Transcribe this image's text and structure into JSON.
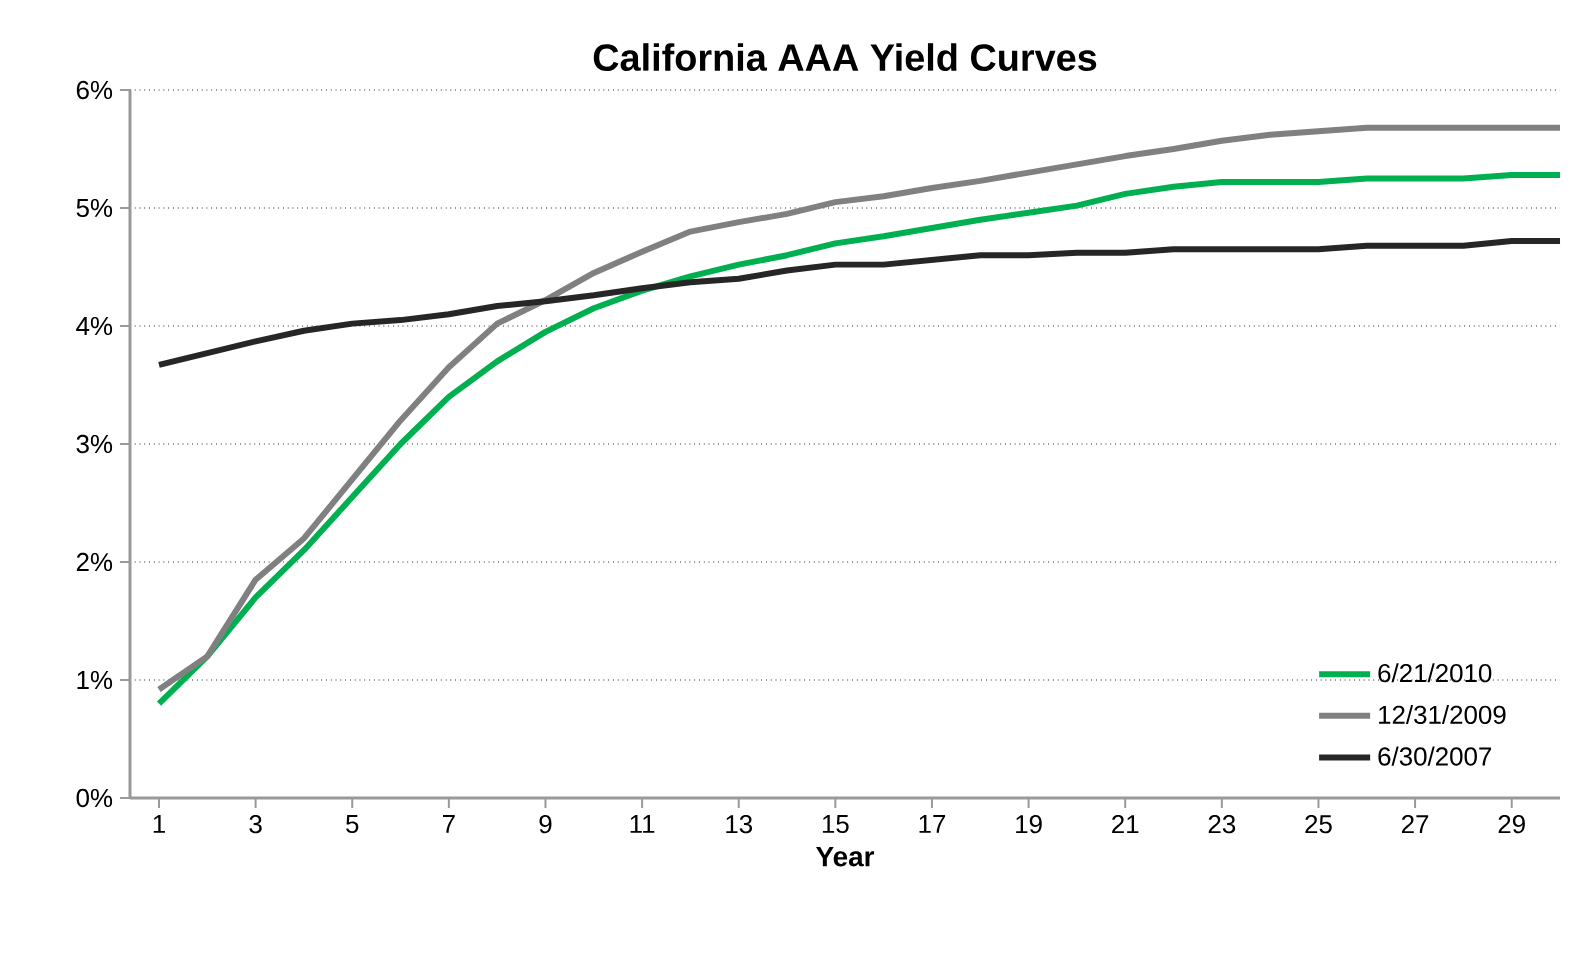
{
  "chart_data": {
    "type": "line",
    "title": "**California AAA Yield Curves**",
    "xlabel": "**Year**",
    "x": [
      1,
      2,
      3,
      4,
      5,
      6,
      7,
      8,
      9,
      10,
      11,
      12,
      13,
      14,
      15,
      16,
      17,
      18,
      19,
      20,
      21,
      22,
      23,
      24,
      25,
      26,
      27,
      28,
      29,
      30
    ],
    "xlim": [
      0.4,
      30
    ],
    "xticks": [
      1,
      3,
      5,
      7,
      9,
      11,
      13,
      15,
      17,
      19,
      21,
      23,
      25,
      27,
      29
    ],
    "ylim": [
      0,
      6
    ],
    "yticks": [
      {
        "value": 0,
        "label": "0%"
      },
      {
        "value": 1,
        "label": "1%"
      },
      {
        "value": 2,
        "label": "2%"
      },
      {
        "value": 3,
        "label": "3%"
      },
      {
        "value": 4,
        "label": "4%"
      },
      {
        "value": 5,
        "label": "5%"
      },
      {
        "value": 6,
        "label": "6%"
      }
    ],
    "grid": "y",
    "legend": "bottom right",
    "marker": "none",
    "line_style": "solid",
    "series": [
      {
        "name": "6/21/2010",
        "color": "#00b050",
        "values": [
          0.8,
          1.2,
          1.7,
          2.1,
          2.55,
          3.0,
          3.4,
          3.7,
          3.95,
          4.15,
          4.3,
          4.42,
          4.52,
          4.6,
          4.7,
          4.76,
          4.83,
          4.9,
          4.96,
          5.02,
          5.12,
          5.18,
          5.22,
          5.22,
          5.22,
          5.25,
          5.25,
          5.25,
          5.28,
          5.28
        ]
      },
      {
        "name": "12/31/2009",
        "color": "#808080",
        "values": [
          0.92,
          1.2,
          1.85,
          2.2,
          2.7,
          3.2,
          3.65,
          4.02,
          4.22,
          4.45,
          4.63,
          4.8,
          4.88,
          4.95,
          5.05,
          5.1,
          5.17,
          5.23,
          5.3,
          5.37,
          5.44,
          5.5,
          5.57,
          5.62,
          5.65,
          5.68,
          5.68,
          5.68,
          5.68,
          5.68
        ]
      },
      {
        "name": "6/30/2007",
        "color": "#262626",
        "values": [
          3.67,
          3.77,
          3.87,
          3.96,
          4.02,
          4.05,
          4.1,
          4.17,
          4.21,
          4.26,
          4.32,
          4.37,
          4.4,
          4.47,
          4.52,
          4.52,
          4.56,
          4.6,
          4.6,
          4.62,
          4.62,
          4.65,
          4.65,
          4.65,
          4.65,
          4.68,
          4.68,
          4.68,
          4.72,
          4.72
        ]
      }
    ]
  }
}
